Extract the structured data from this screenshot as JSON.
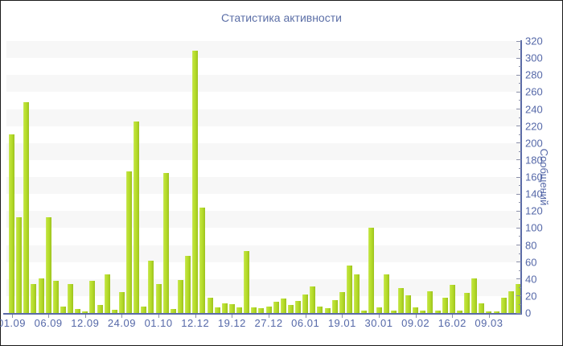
{
  "window": {
    "background": "#ffffff",
    "border_color": "#1a1a1a"
  },
  "chart_data": {
    "type": "bar",
    "title": "Статистика активности",
    "ylabel": "Сообщений",
    "xlabel": "",
    "ylim": [
      0,
      320
    ],
    "y_tick_step": 20,
    "y_minor_tick_step": 10,
    "y_tick_labels": [
      "0",
      "20",
      "40",
      "60",
      "80",
      "100",
      "120",
      "140",
      "160",
      "180",
      "200",
      "220",
      "240",
      "260",
      "280",
      "300",
      "320"
    ],
    "legend_position": "none",
    "grid": "alternating horizontal bands, y-axis on right",
    "bar_count": 70,
    "values": [
      210,
      113,
      248,
      34,
      41,
      113,
      38,
      8,
      34,
      5,
      2,
      38,
      9,
      45,
      4,
      25,
      167,
      225,
      8,
      62,
      34,
      165,
      5,
      39,
      67,
      309,
      124,
      18,
      7,
      11,
      10,
      7,
      73,
      7,
      6,
      8,
      13,
      17,
      9,
      14,
      22,
      31,
      8,
      6,
      15,
      25,
      56,
      45,
      3,
      100,
      7,
      45,
      3,
      29,
      21,
      7,
      3,
      26,
      3,
      18,
      33,
      3,
      24,
      41,
      11,
      2,
      2,
      18,
      26,
      34
    ],
    "x_ticks": [
      {
        "index": 0,
        "label": "01.09"
      },
      {
        "index": 5,
        "label": "06.09"
      },
      {
        "index": 10,
        "label": "12.09"
      },
      {
        "index": 15,
        "label": "24.09"
      },
      {
        "index": 20,
        "label": "01.10"
      },
      {
        "index": 25,
        "label": "12.12"
      },
      {
        "index": 30,
        "label": "19.12"
      },
      {
        "index": 35,
        "label": "27.12"
      },
      {
        "index": 40,
        "label": "06.01"
      },
      {
        "index": 45,
        "label": "19.01"
      },
      {
        "index": 50,
        "label": "30.01"
      },
      {
        "index": 55,
        "label": "09.02"
      },
      {
        "index": 60,
        "label": "16.02"
      },
      {
        "index": 65,
        "label": "09.03"
      }
    ],
    "colors": {
      "bar": "#b4db29",
      "bar_highlight": "#cce968",
      "bar_shadow": "#9cc01e",
      "stripe_band": "#f7f7f7",
      "plot_background": "#ffffff",
      "axis_line": "#5b6ba6",
      "tick": "#8a8fa8",
      "text": "#5568a8",
      "title_text": "#5c6fa7"
    }
  }
}
